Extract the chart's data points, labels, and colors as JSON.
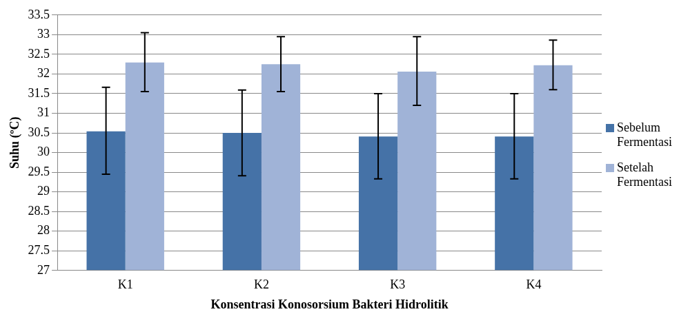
{
  "chart_data": {
    "type": "bar",
    "xlabel": "Konsentrasi Konosorsium Bakteri Hidrolitik",
    "ylabel": "Suhu (ºC)",
    "categories": [
      "K1",
      "K2",
      "K3",
      "K4"
    ],
    "series": [
      {
        "name": "Sebelum Fermentasi",
        "color": "#4572a7",
        "values": [
          30.54,
          30.5,
          30.41,
          30.41
        ],
        "errors": [
          [
            29.45,
            31.66
          ],
          [
            29.41,
            31.59
          ],
          [
            29.33,
            31.5
          ],
          [
            29.33,
            31.5
          ]
        ]
      },
      {
        "name": "Setelah Fermentasi",
        "color": "#a0b3d7",
        "values": [
          32.29,
          32.25,
          32.06,
          32.22
        ],
        "errors": [
          [
            31.55,
            33.05
          ],
          [
            31.55,
            32.95
          ],
          [
            31.2,
            32.95
          ],
          [
            31.6,
            32.86
          ]
        ]
      }
    ],
    "ylim": [
      27,
      33.5
    ],
    "yticks": [
      27,
      27.5,
      28,
      28.5,
      29,
      29.5,
      30,
      30.5,
      31,
      31.5,
      32,
      32.5,
      33,
      33.5
    ],
    "grid": "y",
    "legend": "right"
  }
}
